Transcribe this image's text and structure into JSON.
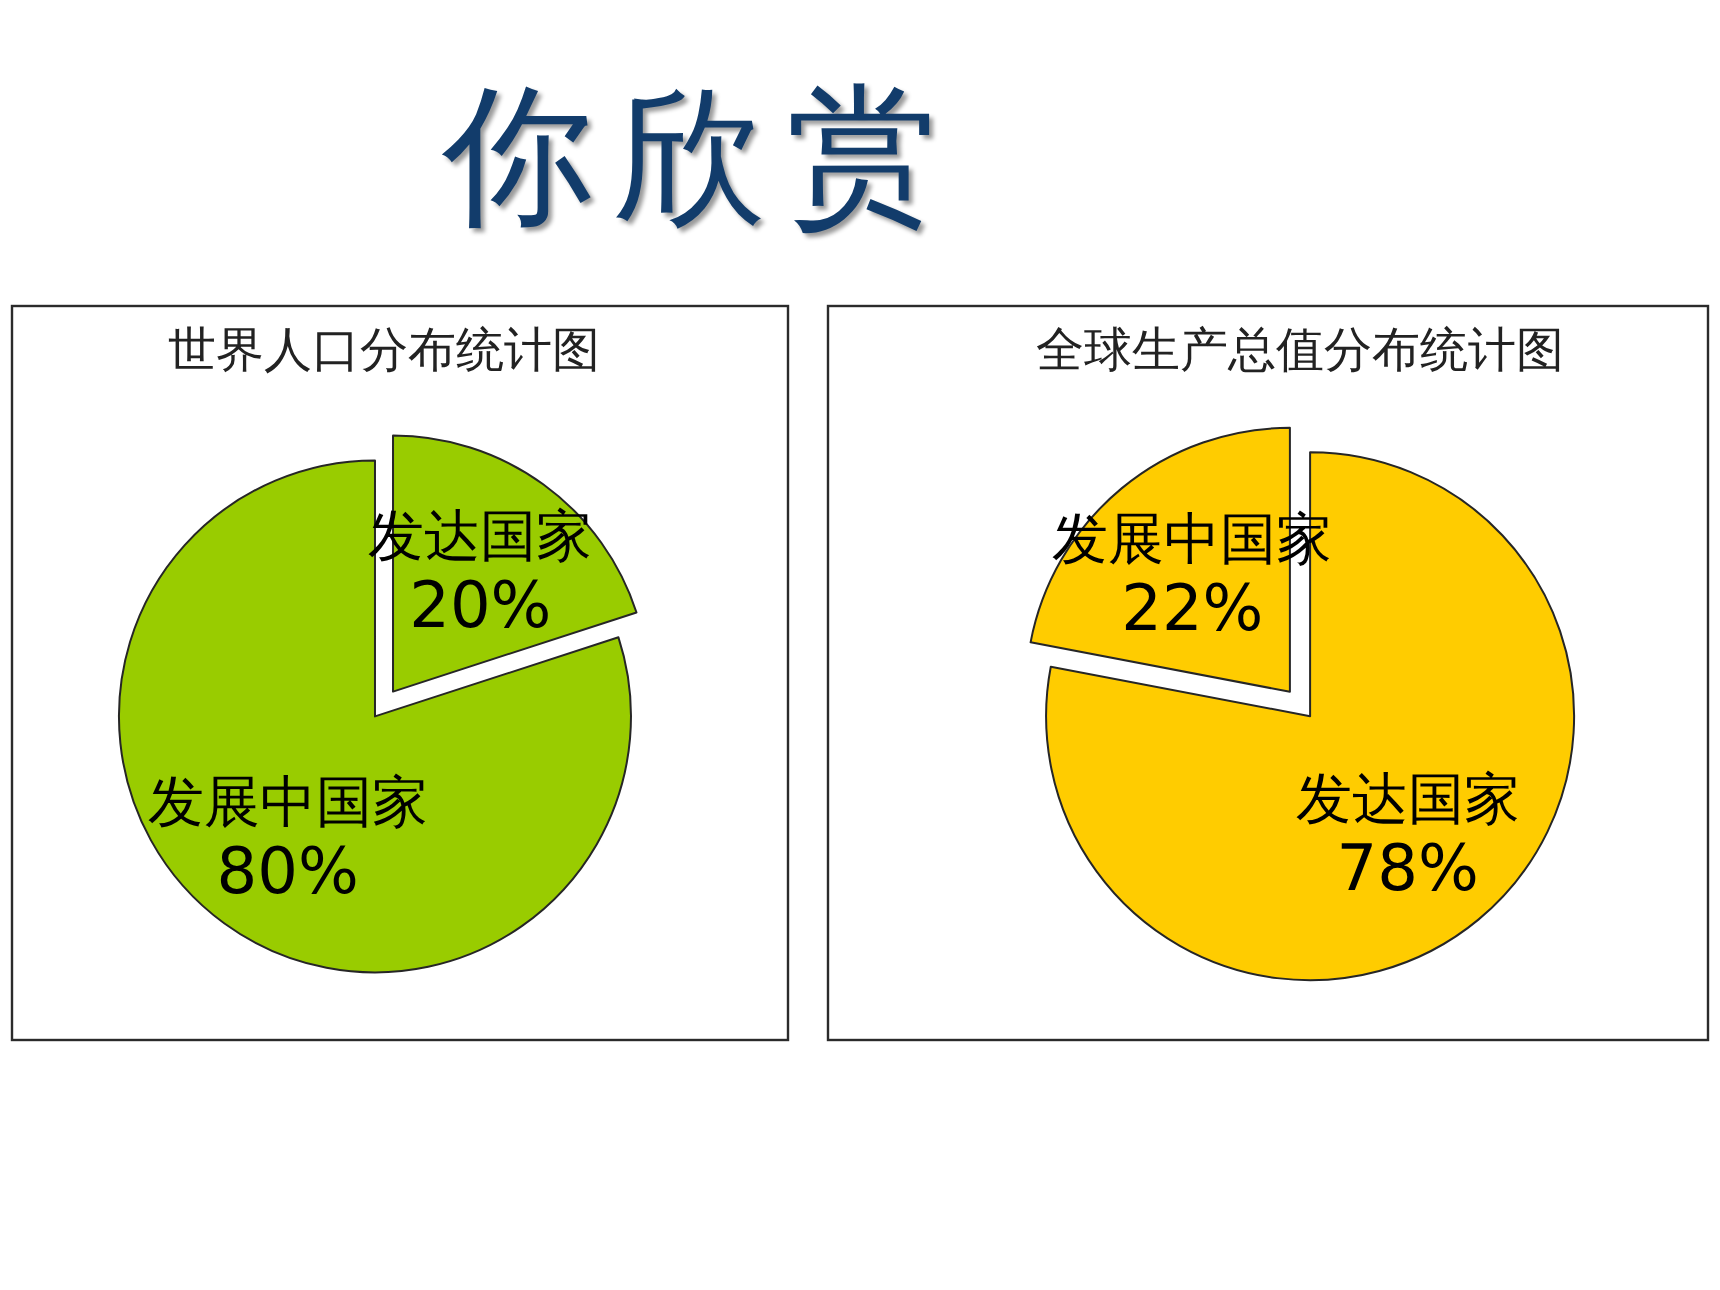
{
  "chart_data": [
    {
      "type": "other",
      "title": "你欣赏"
    },
    {
      "type": "pie",
      "title": "世界人口分布统计图",
      "categories": [
        "发达国家",
        "发展中国家"
      ],
      "values": [
        20,
        80
      ],
      "value_labels": [
        "20%",
        "80%"
      ],
      "colors": [
        "#99cc00",
        "#99cc00"
      ]
    },
    {
      "type": "pie",
      "title": "全球生产总值分布统计图",
      "categories": [
        "发达国家",
        "发展中国家"
      ],
      "values": [
        78,
        22
      ],
      "value_labels": [
        "78%",
        "22%"
      ],
      "colors": [
        "#ffcc00",
        "#ffcc00"
      ]
    }
  ]
}
